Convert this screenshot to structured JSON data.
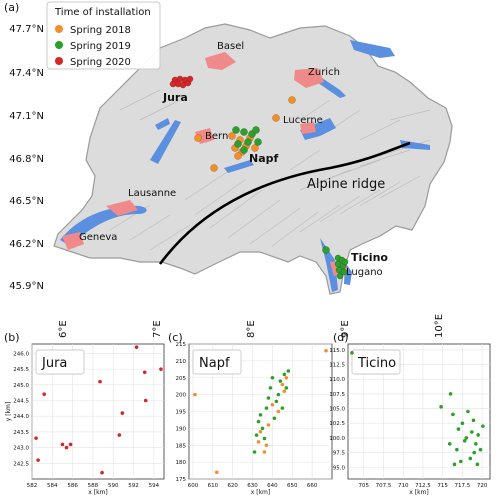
{
  "panel_labels": {
    "a": "(a)",
    "b": "(b)",
    "c": "(c)",
    "d": "(d)"
  },
  "map": {
    "lat_ticks": [
      "47.7°N",
      "47.4°N",
      "47.1°N",
      "46.8°N",
      "46.5°N",
      "46.2°N",
      "45.9°N"
    ],
    "lon_ticks": [
      "6°E",
      "7°E",
      "8°E",
      "9°E",
      "10°E"
    ],
    "cities": [
      "Basel",
      "Zurich",
      "Bern",
      "Lucerne",
      "Lausanne",
      "Geneva",
      "Lugano"
    ],
    "regions": [
      "Jura",
      "Napf",
      "Ticino"
    ],
    "ridge_label": "Alpine ridge",
    "legend": {
      "title": "Time of installation",
      "items": [
        {
          "label": "Spring 2018",
          "color": "#f28e2b"
        },
        {
          "label": "Spring 2019",
          "color": "#2ca02c"
        },
        {
          "label": "Spring 2020",
          "color": "#d62728"
        }
      ]
    },
    "colors": {
      "lakes": "#5b8fe0",
      "urban": "#f08a8a",
      "relief": "#d9d9d9",
      "ridge": "#000000"
    }
  },
  "chart_data": [
    {
      "type": "scatter",
      "title": "Jura",
      "xlabel": "x [km]",
      "ylabel": "y [km]",
      "xlim": [
        582,
        595
      ],
      "ylim": [
        242.0,
        246.3
      ],
      "xticks": [
        582,
        584,
        586,
        588,
        590,
        592,
        594
      ],
      "yticks": [
        242.5,
        243.0,
        243.5,
        244.0,
        244.5,
        245.0,
        245.5,
        246.0
      ],
      "grid": true,
      "series": [
        {
          "name": "Spring 2020",
          "color": "#d62728",
          "points": [
            [
              582.4,
              243.3
            ],
            [
              582.6,
              242.6
            ],
            [
              583.2,
              244.7
            ],
            [
              585.0,
              243.1
            ],
            [
              585.4,
              243.0
            ],
            [
              585.8,
              243.1
            ],
            [
              588.7,
              245.1
            ],
            [
              588.9,
              242.2
            ],
            [
              590.6,
              243.4
            ],
            [
              590.9,
              244.1
            ],
            [
              592.3,
              246.2
            ],
            [
              593.1,
              245.4
            ],
            [
              593.2,
              244.5
            ],
            [
              594.7,
              245.5
            ]
          ]
        }
      ]
    },
    {
      "type": "scatter",
      "title": "Napf",
      "xlabel": "x [km]",
      "xlim": [
        598,
        670
      ],
      "ylim": [
        175,
        215
      ],
      "xticks": [
        600,
        610,
        620,
        630,
        640,
        650,
        660
      ],
      "yticks": [
        175,
        180,
        185,
        190,
        195,
        200,
        205,
        210,
        215
      ],
      "grid": true,
      "series": [
        {
          "name": "Spring 2018",
          "color": "#f28e2b",
          "points": [
            [
              601,
              200
            ],
            [
              612,
              177
            ],
            [
              633,
              186
            ],
            [
              634,
              189
            ],
            [
              636,
              183
            ],
            [
              637,
              185
            ],
            [
              638,
              191
            ],
            [
              640,
              197
            ],
            [
              643,
              195
            ],
            [
              645,
              203
            ],
            [
              647,
              205
            ],
            [
              646,
              201
            ],
            [
              667,
              213
            ]
          ]
        },
        {
          "name": "Spring 2019",
          "color": "#2ca02c",
          "points": [
            [
              631,
              183
            ],
            [
              632,
              188
            ],
            [
              633,
              192
            ],
            [
              634,
              194
            ],
            [
              635,
              190
            ],
            [
              636,
              187
            ],
            [
              637,
              196
            ],
            [
              638,
              199
            ],
            [
              639,
              202
            ],
            [
              640,
              205
            ],
            [
              641,
              193
            ],
            [
              642,
              198
            ],
            [
              643,
              200
            ],
            [
              644,
              204
            ],
            [
              645,
              196
            ],
            [
              646,
              206
            ],
            [
              647,
              202
            ],
            [
              648,
              207
            ]
          ]
        }
      ]
    },
    {
      "type": "scatter",
      "title": "Ticino",
      "xlabel": "x [km]",
      "xlim": [
        703,
        721
      ],
      "ylim": [
        93,
        116
      ],
      "xticks": [
        705,
        707.5,
        710,
        712.5,
        715,
        717.5,
        720
      ],
      "yticks": [
        95.0,
        97.5,
        100.0,
        102.5,
        105.0,
        107.5,
        110.0,
        112.5,
        115.0
      ],
      "grid": true,
      "series": [
        {
          "name": "Spring 2019",
          "color": "#2ca02c",
          "points": [
            [
              703.5,
              114.5
            ],
            [
              714.8,
              105.3
            ],
            [
              716.0,
              107.5
            ],
            [
              716.3,
              104.0
            ],
            [
              716.8,
              98.0
            ],
            [
              717.0,
              101.5
            ],
            [
              717.3,
              96.0
            ],
            [
              717.5,
              102.5
            ],
            [
              717.8,
              99.5
            ],
            [
              718.0,
              100.0
            ],
            [
              718.2,
              104.5
            ],
            [
              718.5,
              96.5
            ],
            [
              718.7,
              101.0
            ],
            [
              718.9,
              103.0
            ],
            [
              719.0,
              97.5
            ],
            [
              719.2,
              99.0
            ],
            [
              719.4,
              95.5
            ],
            [
              719.5,
              100.5
            ],
            [
              719.8,
              98.0
            ],
            [
              720.1,
              102.0
            ],
            [
              715.9,
              99.0
            ],
            [
              716.5,
              95.5
            ]
          ]
        }
      ]
    }
  ]
}
